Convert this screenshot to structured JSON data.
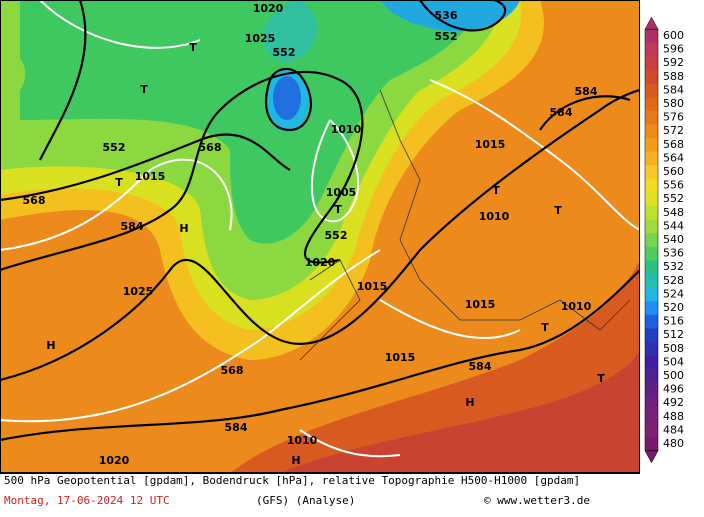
{
  "map": {
    "colorbar": {
      "ticks": [
        600,
        596,
        592,
        588,
        584,
        580,
        576,
        572,
        568,
        564,
        560,
        556,
        552,
        548,
        544,
        540,
        536,
        532,
        528,
        524,
        520,
        516,
        512,
        508,
        504,
        500,
        496,
        492,
        488,
        484,
        480
      ],
      "colors": [
        "#b0306a",
        "#c03a5a",
        "#c84040",
        "#d04a30",
        "#d85a20",
        "#e06a18",
        "#e87818",
        "#f08a18",
        "#f49c18",
        "#f8b020",
        "#f8c828",
        "#f0dc20",
        "#e0e020",
        "#c0e030",
        "#a0dc40",
        "#78d450",
        "#50cc60",
        "#30c080",
        "#20c0b0",
        "#20b8e0",
        "#2090f0",
        "#2060e0",
        "#2040c0",
        "#3030b0",
        "#4020a0",
        "#502090",
        "#602088",
        "#702080",
        "#782078",
        "#802070",
        "#7a1a6a"
      ]
    },
    "labels": [
      "552",
      "536",
      "552",
      "552",
      "568",
      "568",
      "584",
      "584",
      "584",
      "584",
      "584",
      "568",
      "552",
      "1020",
      "1025",
      "1010",
      "1015",
      "1005",
      "1020",
      "1015",
      "1010",
      "1015",
      "1010",
      "1015",
      "1025",
      "1020",
      "1010",
      "1015",
      "H",
      "H",
      "H",
      "H",
      "T",
      "T",
      "T",
      "T",
      "T",
      "T",
      "T",
      "T"
    ],
    "caption": {
      "line1": "500 hPa Geopotential [gpdam], Bodendruck [hPa], relative Topographie H500-H1000 [gpdam]",
      "date": "Montag, 17-06-2024  12 UTC",
      "model": "(GFS)  (Analyse)",
      "source": "© www.wetter3.de"
    }
  }
}
